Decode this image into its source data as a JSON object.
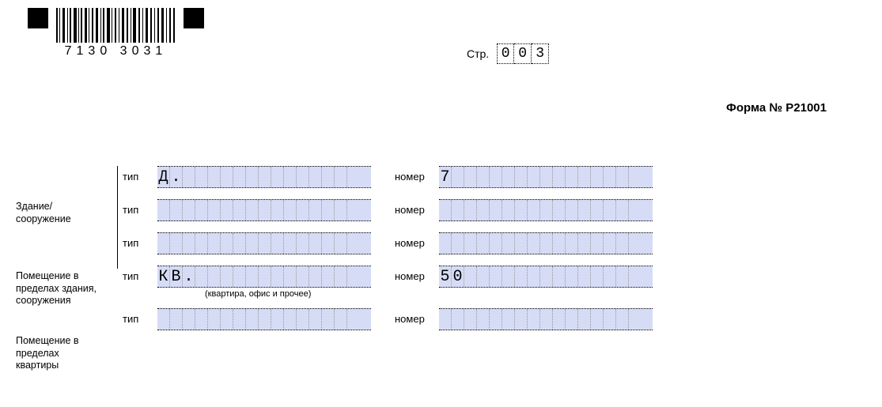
{
  "barcode": {
    "digits": "7130 3031"
  },
  "page": {
    "label": "Стр.",
    "digits": [
      "0",
      "0",
      "3"
    ]
  },
  "form_number": "Форма № Р21001",
  "labels": {
    "type": "тип",
    "number": "номер",
    "building": "Здание/ сооружение",
    "premises_in_building": "Помещение в пределах здания, сооружения",
    "premises_in_flat": "Помещение в пределах квартиры",
    "flat_caption": "(квартира, офис и прочее)"
  },
  "fields": {
    "cell_count_type": 16,
    "cell_count_num": 16,
    "rows": [
      {
        "type_value": "Д.",
        "number_value": "7"
      },
      {
        "type_value": "",
        "number_value": ""
      },
      {
        "type_value": "",
        "number_value": ""
      },
      {
        "type_value": "КВ.",
        "number_value": "50",
        "caption": true
      },
      {
        "type_value": "",
        "number_value": ""
      }
    ]
  },
  "colors": {
    "field_bg": "#d6dcf5",
    "dot_border": "#000000",
    "inner_dot": "#999999"
  }
}
